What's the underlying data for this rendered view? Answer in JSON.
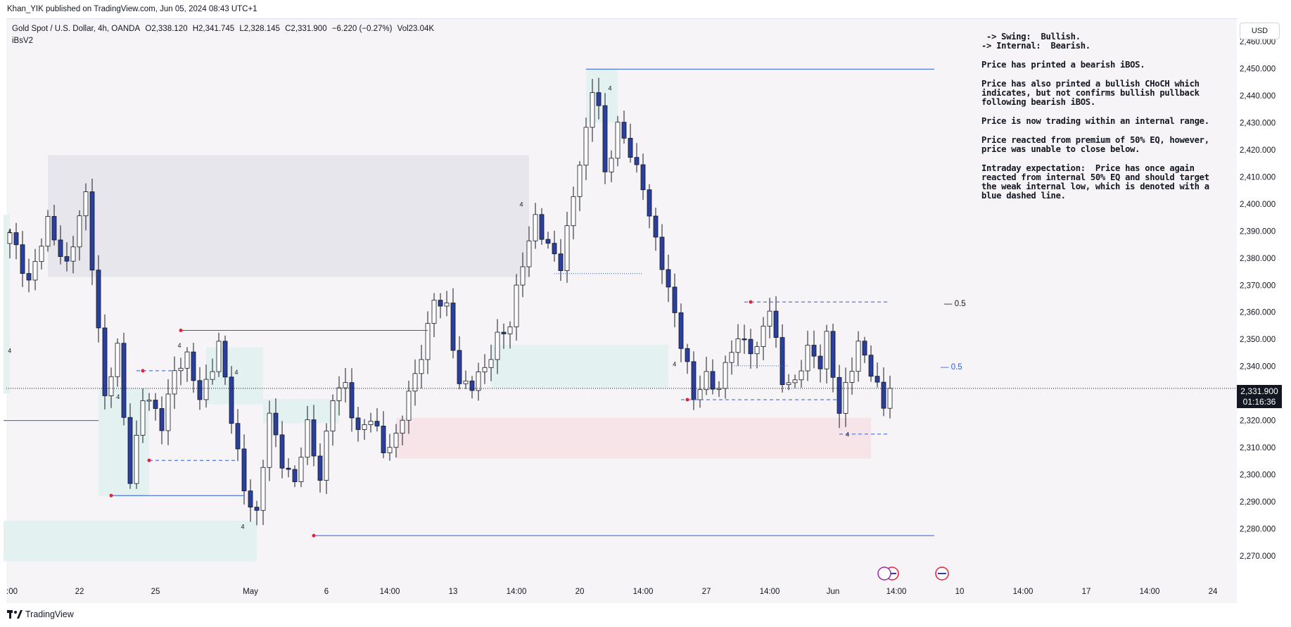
{
  "publisher_bar": "Khan_YIK published on TradingView.com, Jun 05, 2024 08:43 UTC+1",
  "legend": {
    "symbol": "Gold Spot / U.S. Dollar, 4h, OANDA",
    "open": "O2,338.120",
    "high": "H2,341.745",
    "low": "L2,328.145",
    "close": "C2,331.900",
    "change": "−6.220 (−0.27%)",
    "volume": "Vol23.04K"
  },
  "indicator_name": "iBsV2",
  "currency_button": "USD",
  "price_tag": {
    "price": "2,331.900",
    "countdown": "01:16:36"
  },
  "footer_brand": "TradingView",
  "notes": {
    "swing": " -> Swing:  Bullish.",
    "internal": "-> Internal:  Bearish.",
    "p1": "Price has printed a bearish iBOS.",
    "p2": "Price has also printed a bullish CHoCH which indicates, but not confirms bullish pullback following bearish iBOS.",
    "p3": "Price is now trading within an internal range.",
    "p4": "Price reacted from premium of 50% EQ, however, price was unable to close below.",
    "p5": "Intraday expectation:  Price has once again reacted from internal 50% EQ and should target the weak internal low, which is denoted with a blue dashed line."
  },
  "eq_labels": {
    "swing_eq": "— 0.5",
    "internal_eq": "— 0.5"
  },
  "colors": {
    "background": "#f6f4f6",
    "bull_candle": "#ffffff",
    "bear_candle": "#2a3f9e",
    "wick": "#131722",
    "structure_line": "#2a5bd7",
    "swing_point": "#e5213b",
    "demand_zone": "#e3f1f1",
    "supply_zone": "#e6e6ec",
    "premium_zone": "#f7e4e8"
  },
  "chart_data": {
    "type": "candlestick",
    "title": "Gold Spot / U.S. Dollar, 4h, OANDA",
    "ylim": [
      2264,
      2466
    ],
    "y_ticks": [
      2270,
      2280,
      2290,
      2300,
      2310,
      2320,
      2330,
      2340,
      2350,
      2360,
      2370,
      2380,
      2390,
      2400,
      2410,
      2420,
      2430,
      2440,
      2450,
      2460
    ],
    "y_tick_labels": [
      "2,270.000",
      "2,280.000",
      "2,290.000",
      "2,300.000",
      "2,310.000",
      "2,320.000",
      "2,330.000",
      "2,340.000",
      "2,350.000",
      "2,360.000",
      "2,370.000",
      "2,380.000",
      "2,390.000",
      "2,400.000",
      "2,410.000",
      "2,420.000",
      "2,430.000",
      "2,440.000",
      "2,450.000",
      "2,460.000"
    ],
    "x_tick_labels": [
      ":00",
      "22",
      "25",
      "May",
      "6",
      "14:00",
      "13",
      "14:00",
      "20",
      "14:00",
      "27",
      "14:00",
      "Jun",
      "14:00",
      "10",
      "14:00",
      "17",
      "14:00",
      "24"
    ],
    "x_tick_bar_index": [
      -1,
      11,
      23,
      38,
      50,
      60,
      70,
      80,
      90,
      100,
      110,
      120,
      130,
      140,
      150,
      160,
      170,
      180,
      190
    ],
    "last_price": 2331.9,
    "swing_label": "4",
    "anchors": [
      [
        0,
        2388
      ],
      [
        3,
        2372
      ],
      [
        6,
        2392
      ],
      [
        9,
        2378
      ],
      [
        12,
        2402
      ],
      [
        15,
        2330
      ],
      [
        17,
        2345
      ],
      [
        19,
        2298
      ],
      [
        21,
        2330
      ],
      [
        24,
        2318
      ],
      [
        26,
        2340
      ],
      [
        28,
        2342
      ],
      [
        30,
        2328
      ],
      [
        33,
        2348
      ],
      [
        35,
        2320
      ],
      [
        37,
        2296
      ],
      [
        39,
        2284
      ],
      [
        41,
        2322
      ],
      [
        43,
        2306
      ],
      [
        45,
        2296
      ],
      [
        47,
        2318
      ],
      [
        49,
        2300
      ],
      [
        51,
        2328
      ],
      [
        53,
        2333
      ],
      [
        55,
        2316
      ],
      [
        57,
        2320
      ],
      [
        59,
        2310
      ],
      [
        61,
        2314
      ],
      [
        64,
        2336
      ],
      [
        67,
        2365
      ],
      [
        69,
        2360
      ],
      [
        71,
        2335
      ],
      [
        73,
        2333
      ],
      [
        75,
        2338
      ],
      [
        77,
        2352
      ],
      [
        79,
        2355
      ],
      [
        81,
        2378
      ],
      [
        83,
        2396
      ],
      [
        85,
        2383
      ],
      [
        87,
        2377
      ],
      [
        89,
        2405
      ],
      [
        91,
        2425
      ],
      [
        92,
        2442
      ],
      [
        93,
        2436
      ],
      [
        94,
        2412
      ],
      [
        96,
        2428
      ],
      [
        98,
        2418
      ],
      [
        100,
        2408
      ],
      [
        102,
        2385
      ],
      [
        104,
        2368
      ],
      [
        105,
        2360
      ],
      [
        107,
        2340
      ],
      [
        108,
        2327
      ],
      [
        110,
        2336
      ],
      [
        112,
        2333
      ],
      [
        114,
        2346
      ],
      [
        116,
        2350
      ],
      [
        118,
        2346
      ],
      [
        119,
        2355
      ],
      [
        120,
        2360
      ],
      [
        122,
        2336
      ],
      [
        124,
        2334
      ],
      [
        126,
        2345
      ],
      [
        128,
        2342
      ],
      [
        129,
        2352
      ],
      [
        131,
        2322
      ],
      [
        132,
        2331
      ],
      [
        134,
        2350
      ],
      [
        136,
        2338
      ],
      [
        138,
        2324
      ],
      [
        139,
        2338
      ]
    ],
    "structure_lines": [
      {
        "name": "swing-high-line",
        "y": 2449.8,
        "from": 91,
        "to": 146,
        "style": "solid"
      },
      {
        "name": "swing-low-line",
        "y": 2277.5,
        "from": 48,
        "to": 146,
        "style": "solid"
      },
      {
        "name": "ibos-line-1",
        "y": 2353.3,
        "from": 27,
        "to": 66,
        "style": "solid"
      },
      {
        "name": "low-line-1",
        "y": 2292.3,
        "from": 16,
        "to": 37,
        "style": "solid"
      },
      {
        "name": "left-line",
        "y": 2320,
        "from": -1,
        "to": 14,
        "style": "solid"
      },
      {
        "name": "internal-high-dashed",
        "y": 2363.8,
        "from": 116,
        "to": 139,
        "style": "dashed"
      },
      {
        "name": "internal-low-dashed",
        "y": 2327.7,
        "from": 106,
        "to": 131,
        "style": "dashed"
      },
      {
        "name": "weak-low-dashed",
        "y": 2315.0,
        "from": 131,
        "to": 139,
        "style": "dashed"
      },
      {
        "name": "high-dashed-1",
        "y": 2338.4,
        "from": 20,
        "to": 26,
        "style": "dashed"
      },
      {
        "name": "low-dashed-1",
        "y": 2305.3,
        "from": 22,
        "to": 36,
        "style": "dashed"
      },
      {
        "name": "dotted-1",
        "y": 2374.3,
        "from": 86,
        "to": 100,
        "style": "dotted"
      },
      {
        "name": "dotted-2",
        "y": 2340.2,
        "from": 114,
        "to": 123,
        "style": "dotted"
      }
    ],
    "zones": [
      {
        "name": "supply-zone",
        "kind": "supply",
        "x0": 6,
        "x1": 82,
        "y0": 2373,
        "y1": 2418
      },
      {
        "name": "premium-zone",
        "kind": "premium",
        "x0": 61,
        "x1": 136,
        "y0": 2306,
        "y1": 2321
      },
      {
        "name": "demand-zone-1",
        "kind": "demand",
        "x0": -1,
        "x1": 39,
        "y0": 2268,
        "y1": 2283
      },
      {
        "name": "demand-zone-2",
        "kind": "demand",
        "x0": 76,
        "x1": 104,
        "y0": 2332,
        "y1": 2348
      },
      {
        "name": "demand-zone-3",
        "kind": "demand",
        "x0": 14,
        "x1": 22,
        "y0": 2292,
        "y1": 2332
      },
      {
        "name": "demand-zone-4",
        "kind": "demand",
        "x0": 31,
        "x1": 40,
        "y0": 2326,
        "y1": 2347
      },
      {
        "name": "demand-zone-5",
        "kind": "demand",
        "x0": 40,
        "x1": 52,
        "y0": 2319,
        "y1": 2328
      },
      {
        "name": "demand-zone-6",
        "kind": "demand",
        "x0": 91,
        "x1": 96,
        "y0": 2430,
        "y1": 2450
      },
      {
        "name": "demand-zone-7",
        "kind": "demand",
        "x0": -1,
        "x1": 0,
        "y0": 2330,
        "y1": 2396
      }
    ],
    "swing_points": [
      [
        16,
        2292.3
      ],
      [
        21,
        2338.4
      ],
      [
        22,
        2305.3
      ],
      [
        27,
        2353.3
      ],
      [
        48,
        2277.5
      ],
      [
        107,
        2327.7
      ],
      [
        117,
        2363.8
      ]
    ]
  }
}
